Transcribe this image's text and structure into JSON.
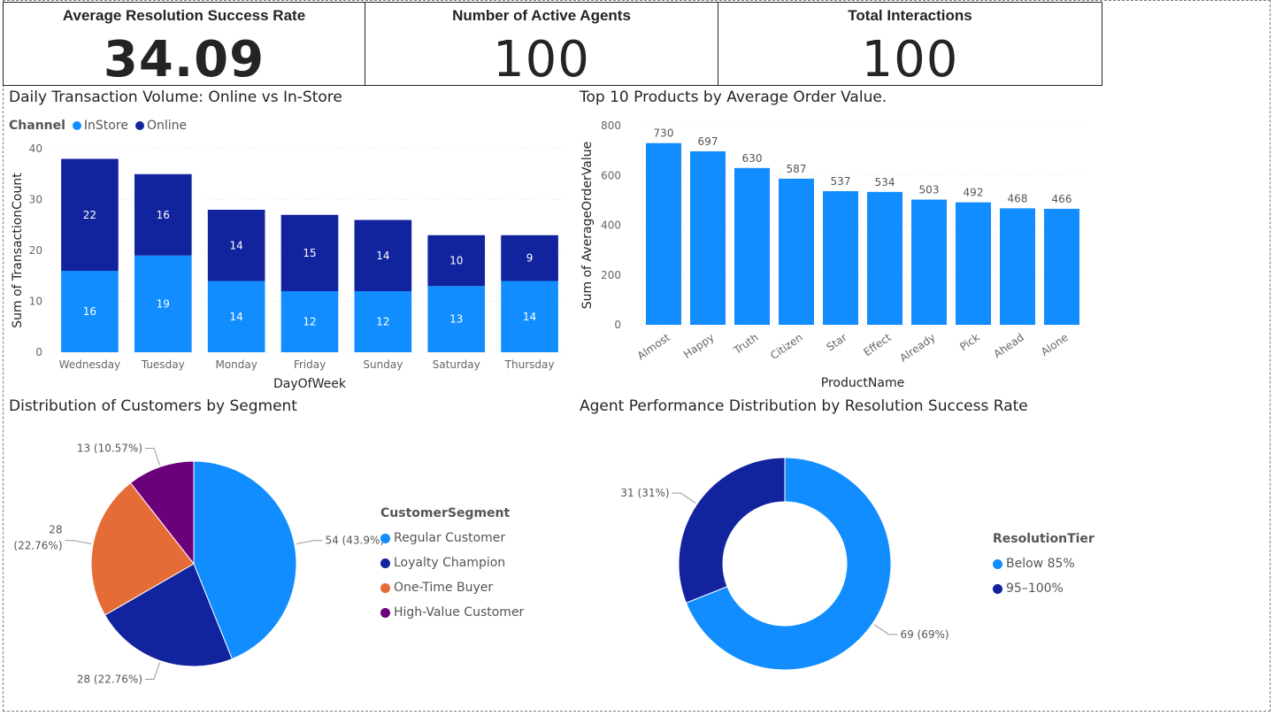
{
  "colors": {
    "light_blue": "#118DFF",
    "dark_blue": "#12239E",
    "orange": "#E66C37",
    "purple": "#6B007B"
  },
  "kpis": [
    {
      "title": "Average Resolution Success Rate",
      "value": "34.09"
    },
    {
      "title": "Number of Active Agents",
      "value": "100"
    },
    {
      "title": "Total Interactions",
      "value": "100"
    }
  ],
  "daily": {
    "title": "Daily Transaction Volume: Online vs In-Store",
    "legend_label": "Channel",
    "legend_items": [
      "InStore",
      "Online"
    ]
  },
  "products": {
    "title": "Top 10 Products by Average Order Value."
  },
  "segments": {
    "title": "Distribution of Customers by Segment",
    "legend_title": "CustomerSegment",
    "legend_items": [
      "Regular Customer",
      "Loyalty Champion",
      "One-Time Buyer",
      "High-Value Customer"
    ]
  },
  "agents": {
    "title": "Agent Performance Distribution by Resolution Success Rate",
    "legend_title": "ResolutionTier",
    "legend_items": [
      "Below 85%",
      "95–100%"
    ]
  },
  "chart_data": [
    {
      "type": "bar",
      "stacked": true,
      "title": "Daily Transaction Volume: Online vs In-Store",
      "xlabel": "DayOfWeek",
      "ylabel": "Sum of TransactionCount",
      "categories": [
        "Wednesday",
        "Tuesday",
        "Monday",
        "Friday",
        "Sunday",
        "Saturday",
        "Thursday"
      ],
      "series": [
        {
          "name": "InStore",
          "values": [
            16,
            19,
            14,
            12,
            12,
            13,
            14
          ]
        },
        {
          "name": "Online",
          "values": [
            22,
            16,
            14,
            15,
            14,
            10,
            9
          ]
        }
      ],
      "ylim": [
        0,
        40
      ],
      "yticks": [
        0,
        10,
        20,
        30,
        40
      ],
      "grid": true,
      "legend_position": "top-left"
    },
    {
      "type": "bar",
      "title": "Top 10 Products by Average Order Value.",
      "xlabel": "ProductName",
      "ylabel": "Sum of AverageOrderValue",
      "categories": [
        "Almost",
        "Happy",
        "Truth",
        "Citizen",
        "Star",
        "Effect",
        "Already",
        "Pick",
        "Ahead",
        "Alone"
      ],
      "values": [
        730,
        697,
        630,
        587,
        537,
        534,
        503,
        492,
        468,
        466
      ],
      "ylim": [
        0,
        800
      ],
      "yticks": [
        0,
        200,
        400,
        600,
        800
      ],
      "grid": true
    },
    {
      "type": "pie",
      "title": "Distribution of Customers by Segment",
      "categories": [
        "Regular Customer",
        "Loyalty Champion",
        "One-Time Buyer",
        "High-Value Customer"
      ],
      "values": [
        54,
        28,
        28,
        13
      ],
      "data_labels": [
        "54 (43.9%)",
        "28 (22.76%)",
        "28 (22.76%)",
        "13 (10.57%)"
      ],
      "legend_position": "right"
    },
    {
      "type": "pie",
      "donut": true,
      "title": "Agent Performance Distribution by Resolution Success Rate",
      "categories": [
        "Below 85%",
        "95–100%"
      ],
      "values": [
        69,
        31
      ],
      "data_labels": [
        "69 (69%)",
        "31 (31%)"
      ],
      "legend_position": "right"
    }
  ]
}
